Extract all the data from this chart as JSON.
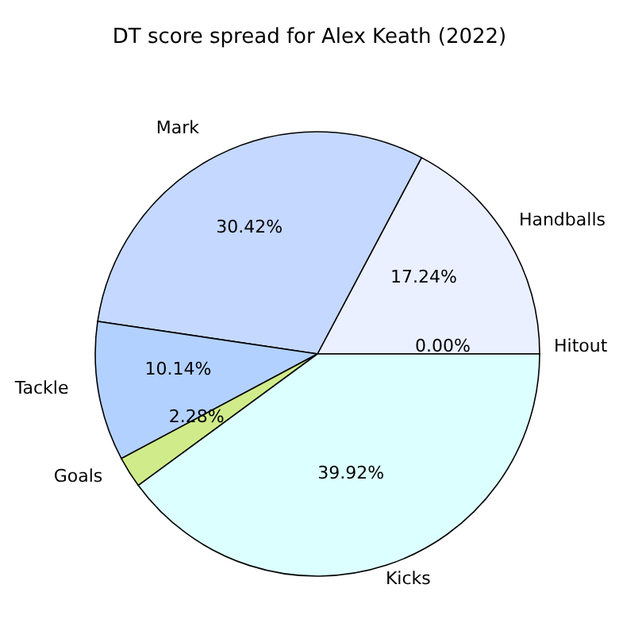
{
  "chart_data": {
    "type": "pie",
    "title": "DT score spread for Alex Keath (2022)",
    "categories": [
      "Handballs",
      "Mark",
      "Tackle",
      "Goals",
      "Kicks",
      "Hitout"
    ],
    "values": [
      17.24,
      30.42,
      10.14,
      2.28,
      39.92,
      0.0
    ],
    "value_labels": [
      "17.24%",
      "30.42%",
      "10.14%",
      "2.28%",
      "39.92%",
      "0.00%"
    ],
    "colors": [
      "#eaf0ff",
      "#c5d8ff",
      "#b3d1ff",
      "#d0ec8a",
      "#dcffff",
      "#ffffff"
    ],
    "legend": false
  }
}
